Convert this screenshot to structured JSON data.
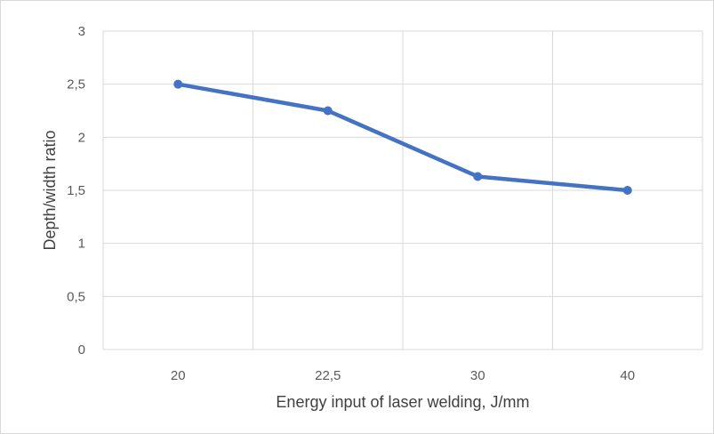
{
  "chart_data": {
    "type": "line",
    "categories": [
      "20",
      "22,5",
      "30",
      "40"
    ],
    "series": [
      {
        "values": [
          2.5,
          2.25,
          1.63,
          1.5
        ]
      }
    ],
    "xlabel": "Energy input of laser welding, J/mm",
    "ylabel": "Depth/width ratio",
    "ylim": [
      0,
      3
    ],
    "yticks": [
      0,
      0.5,
      1,
      1.5,
      2,
      2.5,
      3
    ],
    "ytick_labels": [
      "0",
      "0,5",
      "1",
      "1,5",
      "2",
      "2,5",
      "3"
    ],
    "grid": true,
    "legend": "none",
    "colors": {
      "series": "#4472c4",
      "grid": "#d9d9d9",
      "text": "#595959"
    }
  }
}
